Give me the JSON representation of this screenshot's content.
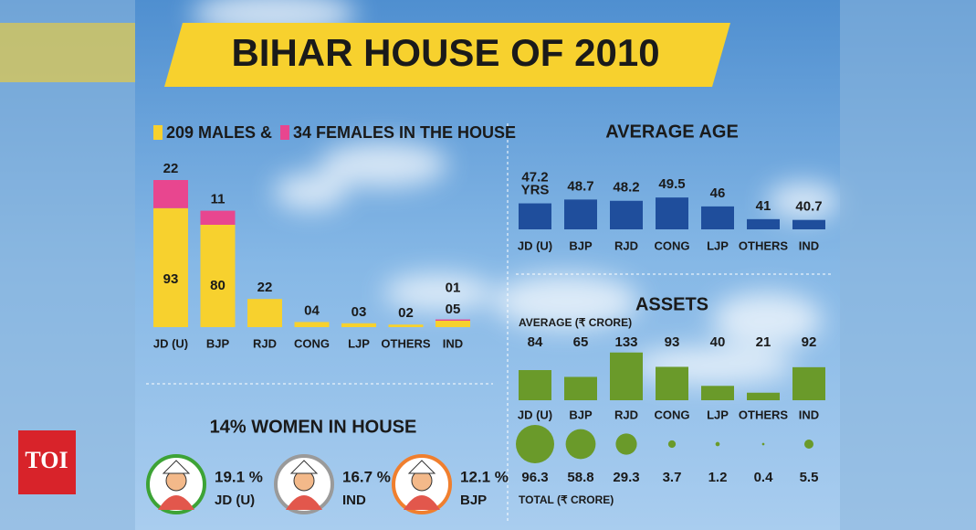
{
  "title": "BIHAR HOUSE OF 2010",
  "logo": "TOI",
  "chart_data": [
    {
      "type": "stacked-bar",
      "categories": [
        "JD (U)",
        "BJP",
        "RJD",
        "CONG",
        "LJP",
        "OTHERS",
        "IND"
      ],
      "series": [
        {
          "name": "209 MALES &",
          "color": "#f7d12e",
          "values": [
            93,
            80,
            22,
            4,
            3,
            2,
            5
          ],
          "value_labels": [
            "93",
            "80",
            "22",
            "04",
            "03",
            "02",
            "05"
          ]
        },
        {
          "name": "34 FEMALES IN THE HOUSE",
          "color": "#e8468f",
          "values": [
            22,
            11,
            0,
            0,
            0,
            0,
            1
          ],
          "value_labels": [
            "22",
            "11",
            null,
            null,
            null,
            null,
            "01"
          ]
        }
      ],
      "ylim": [
        0,
        120
      ]
    },
    {
      "type": "bar",
      "title": "AVERAGE AGE",
      "color": "#1f4e9c",
      "categories": [
        "JD (U)",
        "BJP",
        "RJD",
        "CONG",
        "LJP",
        "OTHERS",
        "IND"
      ],
      "values": [
        47.2,
        48.7,
        48.2,
        49.5,
        46,
        41,
        40.7
      ],
      "value_labels": [
        "47.2 YRS",
        "48.7",
        "48.2",
        "49.5",
        "46",
        "41",
        "40.7"
      ],
      "ylim": [
        37,
        52
      ]
    },
    {
      "type": "bar",
      "title": "ASSETS",
      "subtitle": "AVERAGE (₹ CRORE)",
      "color": "#6a9a2a",
      "categories": [
        "JD (U)",
        "BJP",
        "RJD",
        "CONG",
        "LJP",
        "OTHERS",
        "IND"
      ],
      "values": [
        84,
        65,
        133,
        93,
        40,
        21,
        92
      ],
      "ylim": [
        0,
        140
      ]
    },
    {
      "type": "bubble",
      "title": "TOTAL (₹ CRORE)",
      "color": "#6a9a2a",
      "values": [
        96.3,
        58.8,
        29.3,
        3.7,
        1.2,
        0.4,
        5.5
      ]
    },
    {
      "type": "pictogram",
      "title": "14% WOMEN IN HOUSE",
      "categories": [
        "JD (U)",
        "IND",
        "BJP"
      ],
      "values": [
        19.1,
        16.7,
        12.1
      ],
      "value_labels": [
        "19.1 %",
        "16.7 %",
        "12.1 %"
      ],
      "colors": [
        "#3da336",
        "#9a9a9a",
        "#f07f2e"
      ]
    }
  ]
}
